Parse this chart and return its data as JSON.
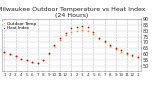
{
  "title": "Milwaukee Outdoor Temperature vs Heat Index\n(24 Hours)",
  "title_fontsize": 4.5,
  "bg_color": "#ffffff",
  "grid_color": "#bbbbbb",
  "x_labels": [
    "1",
    "2",
    "3",
    "4",
    "5",
    "6",
    "7",
    "8",
    "9",
    "10",
    "11",
    "12",
    "1",
    "2",
    "3",
    "4",
    "5",
    "6",
    "7",
    "8",
    "9",
    "10",
    "11",
    "12",
    "1"
  ],
  "hours": [
    0,
    1,
    2,
    3,
    4,
    5,
    6,
    7,
    8,
    9,
    10,
    11,
    12,
    13,
    14,
    15,
    16,
    17,
    18,
    19,
    20,
    21,
    22,
    23,
    24
  ],
  "temp_outdoor": [
    62,
    60,
    58,
    56,
    55,
    53,
    52,
    55,
    60,
    67,
    72,
    76,
    79,
    80,
    81,
    80,
    77,
    73,
    70,
    67,
    64,
    62,
    60,
    58,
    57
  ],
  "heat_index": [
    62,
    60,
    58,
    56,
    55,
    53,
    52,
    55,
    61,
    68,
    74,
    78,
    82,
    83,
    84,
    83,
    79,
    74,
    71,
    68,
    65,
    63,
    61,
    59,
    57
  ],
  "outdoor_color": "#ff8800",
  "heat_color": "#cc0000",
  "dot_size": 1.5,
  "ylim": [
    45,
    90
  ],
  "yticks": [
    50,
    55,
    60,
    65,
    70,
    75,
    80,
    85,
    90
  ],
  "ytick_labels": [
    "50",
    "55",
    "60",
    "65",
    "70",
    "75",
    "80",
    "85",
    "90"
  ],
  "ytick_fontsize": 3.5,
  "xtick_fontsize": 3.0,
  "legend_labels": [
    "Outdoor Temp",
    "Heat Index"
  ],
  "legend_fontsize": 3.0,
  "vgrid_every": [
    0,
    2,
    4,
    6,
    8,
    10,
    12,
    14,
    16,
    18,
    20,
    22,
    24
  ]
}
